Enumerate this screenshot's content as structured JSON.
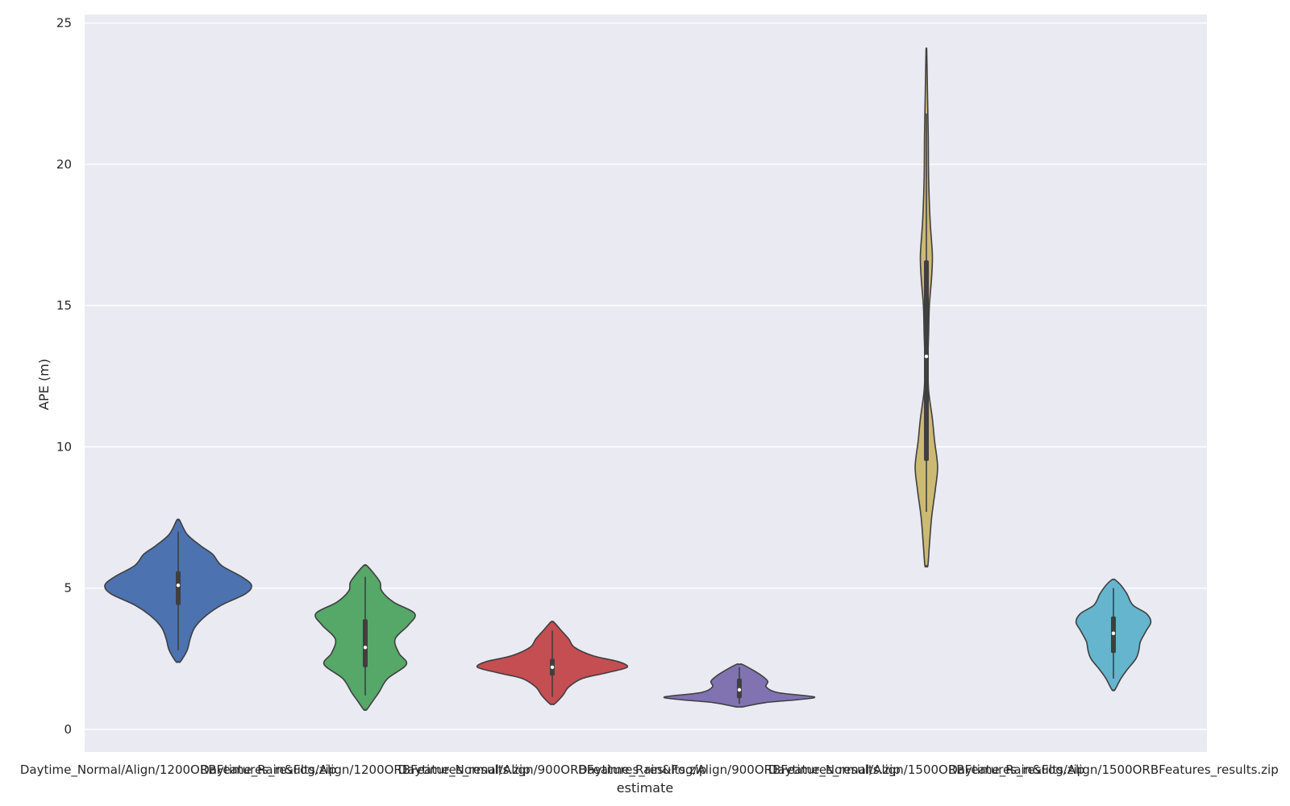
{
  "chart_data": {
    "type": "violin",
    "title": "",
    "xlabel": "estimate",
    "ylabel": "APE (m)",
    "ylim": [
      -0.8,
      25.3
    ],
    "yticks": [
      "0",
      "5",
      "10",
      "15",
      "20",
      "25"
    ],
    "grid": true,
    "background": "#eaeaf2",
    "categories": [
      "Daytime_Normal/Align/1200ORBFeatures_results.zip",
      "Daytime_Rain&Fog/Align/1200ORBFeatures_results.zip",
      "Daytime_Normal/Align/900ORBFeatures_results.zip",
      "Daytime_Rain&Fog/Align/900ORBFeatures_results.zip",
      "Daytime_Normal/Align/1500ORBFeatures_results.zip",
      "Daytime_Rain&Fog/Align/1500ORBFeatures_results.zip"
    ],
    "series": [
      {
        "color": "#4c72b0",
        "min": 2.4,
        "max": 7.4,
        "q1": 4.4,
        "median": 5.1,
        "q3": 5.6,
        "whisker_low": 2.8,
        "whisker_high": 7.0,
        "density": [
          [
            2.4,
            0.03
          ],
          [
            2.8,
            0.12
          ],
          [
            3.2,
            0.16
          ],
          [
            3.6,
            0.22
          ],
          [
            4.0,
            0.36
          ],
          [
            4.4,
            0.58
          ],
          [
            4.8,
            0.9
          ],
          [
            5.1,
            0.98
          ],
          [
            5.4,
            0.85
          ],
          [
            5.8,
            0.58
          ],
          [
            6.2,
            0.46
          ],
          [
            6.5,
            0.3
          ],
          [
            6.9,
            0.12
          ],
          [
            7.4,
            0.02
          ]
        ]
      },
      {
        "color": "#55a868",
        "min": 0.7,
        "max": 5.8,
        "q1": 2.2,
        "median": 2.9,
        "q3": 3.9,
        "whisker_low": 1.2,
        "whisker_high": 5.4,
        "density": [
          [
            0.7,
            0.02
          ],
          [
            1.0,
            0.1
          ],
          [
            1.3,
            0.18
          ],
          [
            1.8,
            0.3
          ],
          [
            2.3,
            0.55
          ],
          [
            2.7,
            0.45
          ],
          [
            3.2,
            0.4
          ],
          [
            3.7,
            0.58
          ],
          [
            4.1,
            0.66
          ],
          [
            4.5,
            0.38
          ],
          [
            4.9,
            0.22
          ],
          [
            5.2,
            0.2
          ],
          [
            5.5,
            0.12
          ],
          [
            5.8,
            0.02
          ]
        ]
      },
      {
        "color": "#c44e52",
        "min": 0.9,
        "max": 3.8,
        "q1": 1.9,
        "median": 2.2,
        "q3": 2.5,
        "whisker_low": 1.15,
        "whisker_high": 3.5,
        "density": [
          [
            0.9,
            0.03
          ],
          [
            1.2,
            0.14
          ],
          [
            1.5,
            0.22
          ],
          [
            1.8,
            0.4
          ],
          [
            2.0,
            0.72
          ],
          [
            2.2,
            1.0
          ],
          [
            2.4,
            0.88
          ],
          [
            2.6,
            0.55
          ],
          [
            2.9,
            0.3
          ],
          [
            3.2,
            0.22
          ],
          [
            3.5,
            0.12
          ],
          [
            3.8,
            0.02
          ]
        ]
      },
      {
        "color": "#8172b2",
        "min": 0.8,
        "max": 2.3,
        "q1": 1.1,
        "median": 1.4,
        "q3": 1.8,
        "whisker_low": 0.9,
        "whisker_high": 2.2,
        "density": [
          [
            0.8,
            0.05
          ],
          [
            0.95,
            0.35
          ],
          [
            1.05,
            0.78
          ],
          [
            1.15,
            1.0
          ],
          [
            1.3,
            0.52
          ],
          [
            1.5,
            0.36
          ],
          [
            1.7,
            0.38
          ],
          [
            1.9,
            0.3
          ],
          [
            2.1,
            0.18
          ],
          [
            2.3,
            0.04
          ]
        ]
      },
      {
        "color": "#ccb974",
        "min": 5.8,
        "max": 24.0,
        "q1": 9.5,
        "median": 13.2,
        "q3": 16.6,
        "whisker_low": 7.7,
        "whisker_high": 21.8,
        "density": [
          [
            5.8,
            0.02
          ],
          [
            6.5,
            0.04
          ],
          [
            7.5,
            0.07
          ],
          [
            8.5,
            0.12
          ],
          [
            9.3,
            0.15
          ],
          [
            10.2,
            0.11
          ],
          [
            11.0,
            0.08
          ],
          [
            12.0,
            0.03
          ],
          [
            13.0,
            0.02
          ],
          [
            14.0,
            0.03
          ],
          [
            15.0,
            0.04
          ],
          [
            16.0,
            0.07
          ],
          [
            16.8,
            0.08
          ],
          [
            18.0,
            0.05
          ],
          [
            19.5,
            0.03
          ],
          [
            21.0,
            0.025
          ],
          [
            22.5,
            0.015
          ],
          [
            24.0,
            0.005
          ]
        ]
      },
      {
        "color": "#64b5cd",
        "min": 1.4,
        "max": 5.3,
        "q1": 2.7,
        "median": 3.4,
        "q3": 4.0,
        "whisker_low": 1.8,
        "whisker_high": 5.0,
        "density": [
          [
            1.4,
            0.02
          ],
          [
            1.8,
            0.1
          ],
          [
            2.1,
            0.18
          ],
          [
            2.5,
            0.3
          ],
          [
            2.8,
            0.34
          ],
          [
            3.1,
            0.36
          ],
          [
            3.5,
            0.44
          ],
          [
            3.8,
            0.5
          ],
          [
            4.1,
            0.44
          ],
          [
            4.4,
            0.26
          ],
          [
            4.8,
            0.18
          ],
          [
            5.1,
            0.1
          ],
          [
            5.3,
            0.02
          ]
        ]
      }
    ]
  }
}
